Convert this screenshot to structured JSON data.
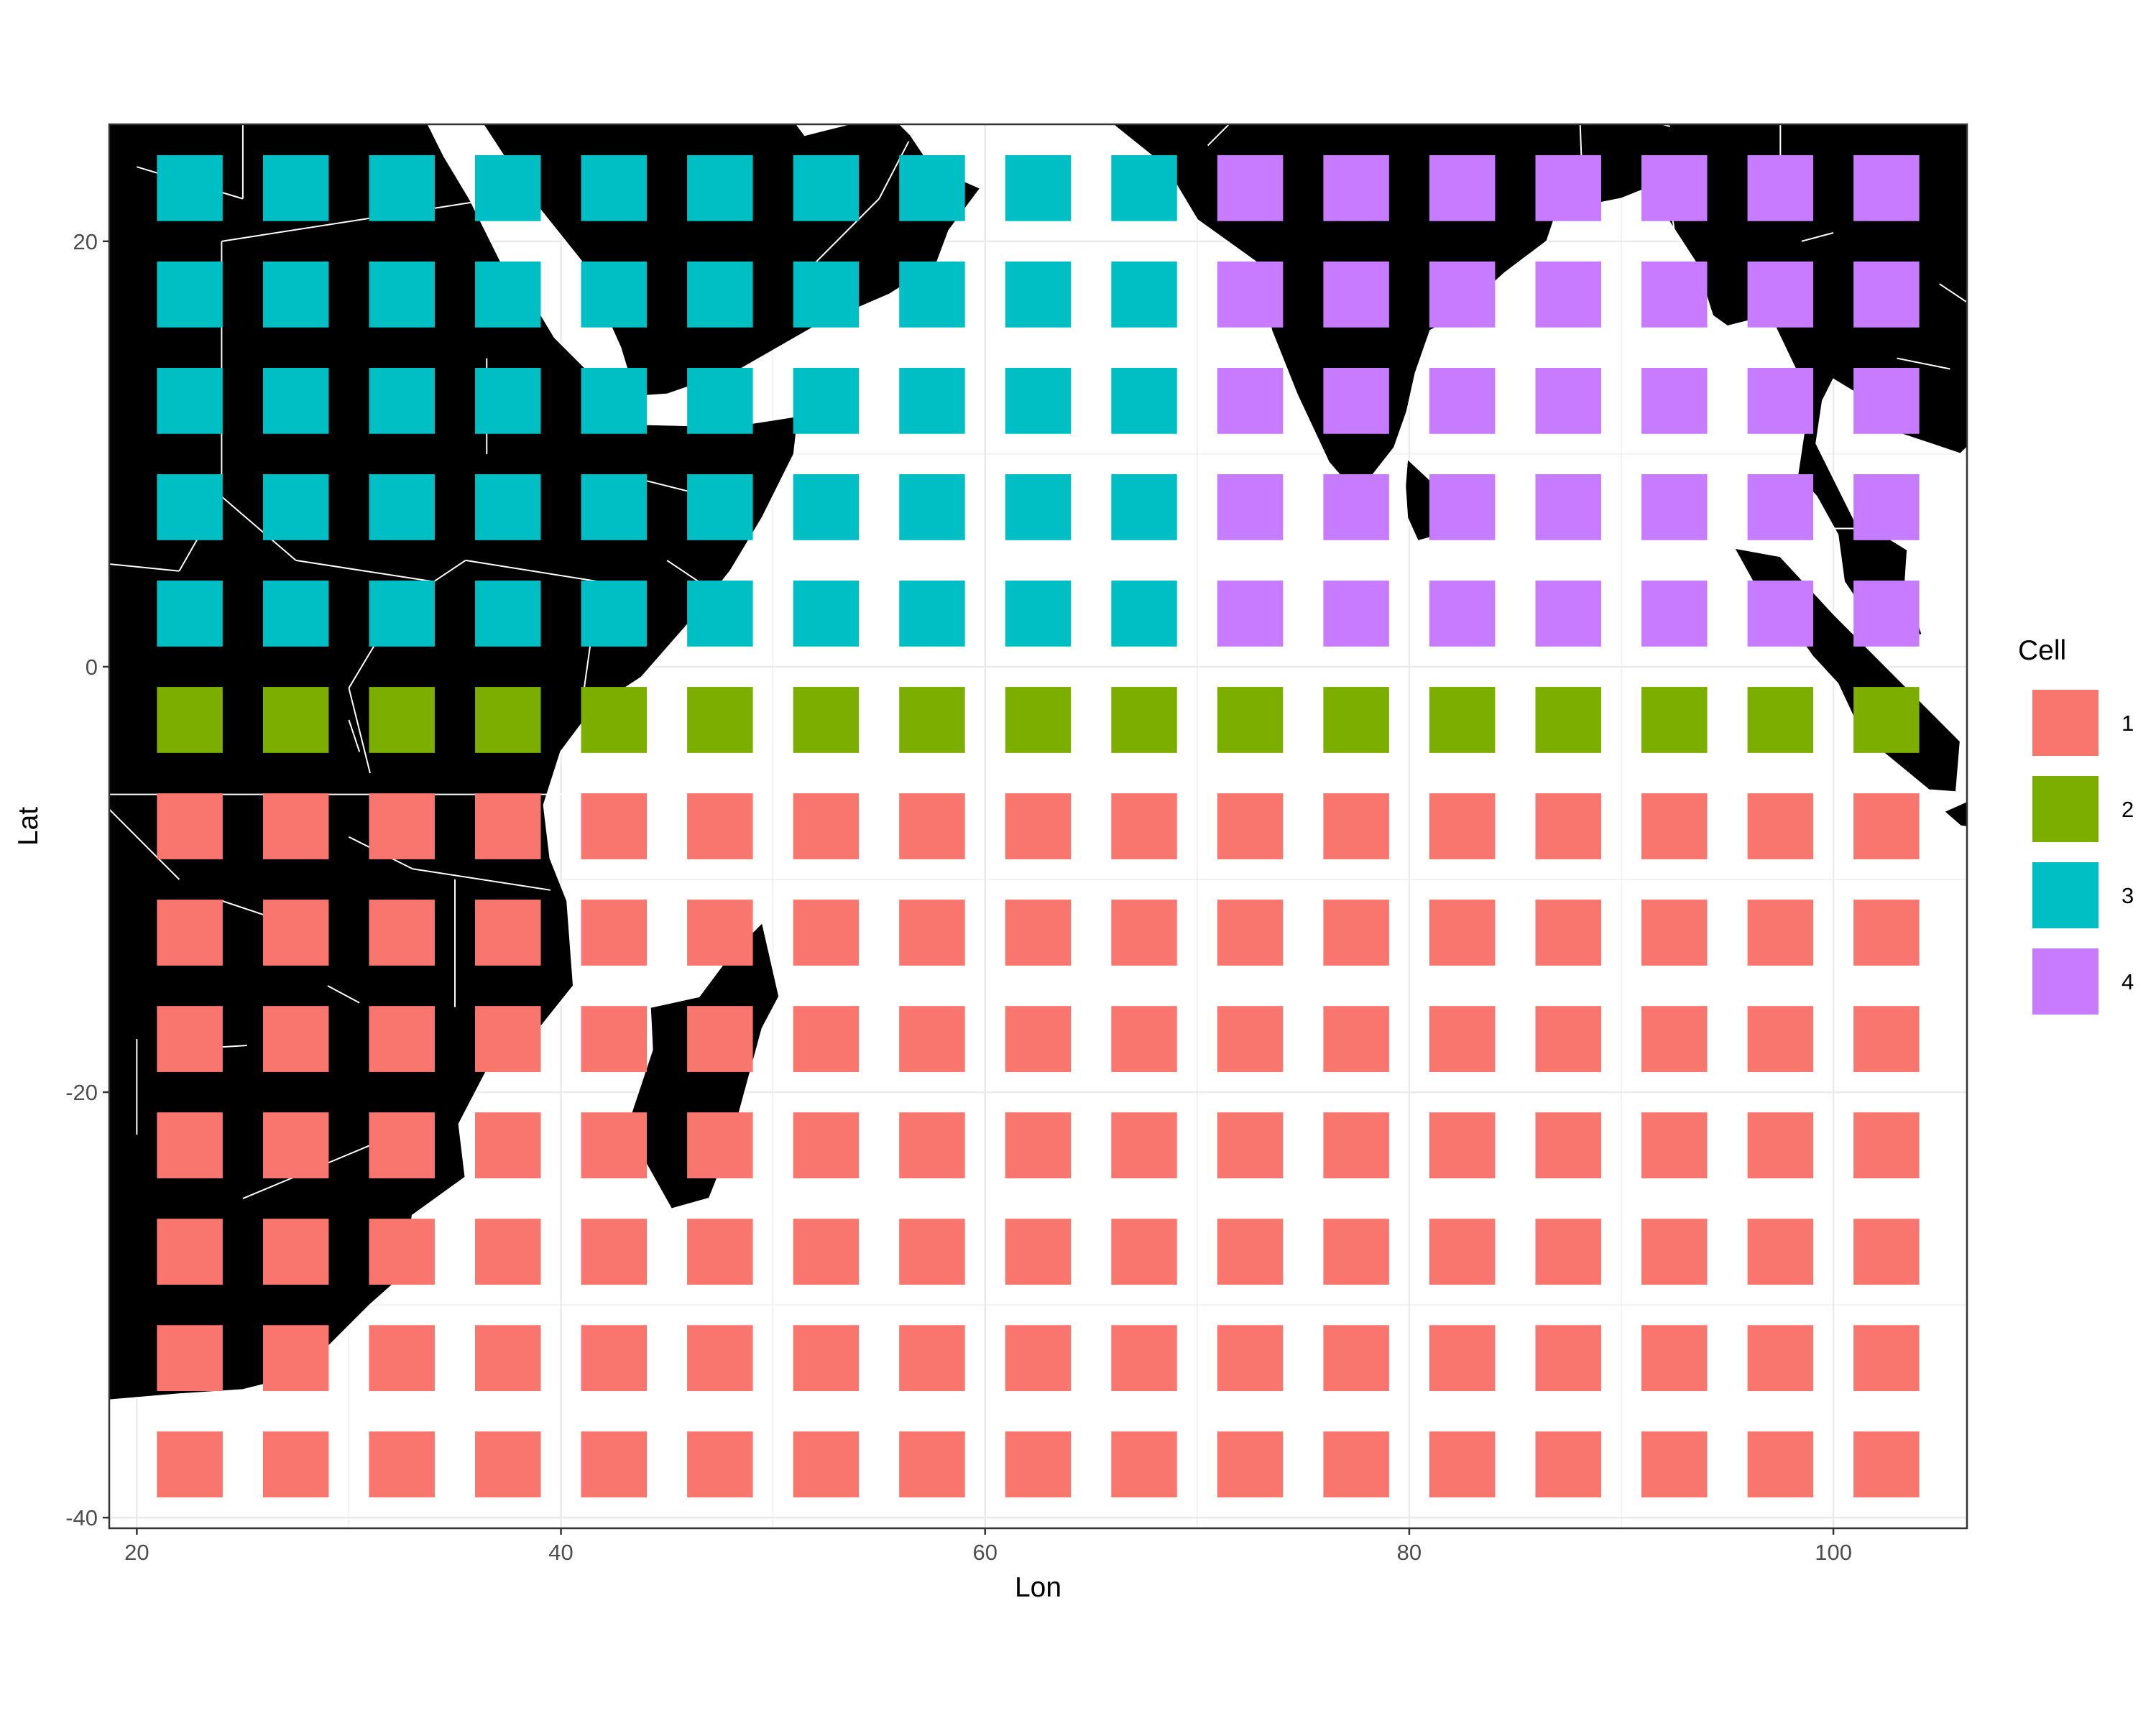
{
  "chart_data": {
    "type": "heatmap",
    "title": "",
    "xlabel": "Lon",
    "ylabel": "Lat",
    "xlim": [
      18.7,
      106.3
    ],
    "ylim": [
      -40.5,
      25.5
    ],
    "x_ticks": [
      20,
      40,
      60,
      80,
      100
    ],
    "y_ticks": [
      -40,
      -20,
      0,
      20
    ],
    "grid": true,
    "basemap": "world country boundaries (black land, white borders)",
    "cell_size": [
      3.1,
      3.1
    ],
    "lon_centers": [
      22.5,
      27.5,
      32.5,
      37.5,
      42.5,
      47.5,
      52.5,
      57.5,
      62.5,
      67.5,
      72.5,
      77.5,
      82.5,
      87.5,
      92.5,
      97.5,
      102.5
    ],
    "lat_centers": [
      22.5,
      17.5,
      12.5,
      7.5,
      2.5,
      -2.5,
      -7.5,
      -12.5,
      -17.5,
      -22.5,
      -27.5,
      -32.5,
      -37.5
    ],
    "cell_rows": [
      [
        3,
        3,
        3,
        3,
        3,
        3,
        3,
        3,
        3,
        3,
        4,
        4,
        4,
        4,
        4,
        4,
        4
      ],
      [
        3,
        3,
        3,
        3,
        3,
        3,
        3,
        3,
        3,
        3,
        4,
        4,
        4,
        4,
        4,
        4,
        4
      ],
      [
        3,
        3,
        3,
        3,
        3,
        3,
        3,
        3,
        3,
        3,
        4,
        4,
        4,
        4,
        4,
        4,
        4
      ],
      [
        3,
        3,
        3,
        3,
        3,
        3,
        3,
        3,
        3,
        3,
        4,
        4,
        4,
        4,
        4,
        4,
        4
      ],
      [
        3,
        3,
        3,
        3,
        3,
        3,
        3,
        3,
        3,
        3,
        4,
        4,
        4,
        4,
        4,
        4,
        4
      ],
      [
        2,
        2,
        2,
        2,
        2,
        2,
        2,
        2,
        2,
        2,
        2,
        2,
        2,
        2,
        2,
        2,
        2
      ],
      [
        1,
        1,
        1,
        1,
        1,
        1,
        1,
        1,
        1,
        1,
        1,
        1,
        1,
        1,
        1,
        1,
        1
      ],
      [
        1,
        1,
        1,
        1,
        1,
        1,
        1,
        1,
        1,
        1,
        1,
        1,
        1,
        1,
        1,
        1,
        1
      ],
      [
        1,
        1,
        1,
        1,
        1,
        1,
        1,
        1,
        1,
        1,
        1,
        1,
        1,
        1,
        1,
        1,
        1
      ],
      [
        1,
        1,
        1,
        1,
        1,
        1,
        1,
        1,
        1,
        1,
        1,
        1,
        1,
        1,
        1,
        1,
        1
      ],
      [
        1,
        1,
        1,
        1,
        1,
        1,
        1,
        1,
        1,
        1,
        1,
        1,
        1,
        1,
        1,
        1,
        1
      ],
      [
        1,
        1,
        1,
        1,
        1,
        1,
        1,
        1,
        1,
        1,
        1,
        1,
        1,
        1,
        1,
        1,
        1
      ],
      [
        1,
        1,
        1,
        1,
        1,
        1,
        1,
        1,
        1,
        1,
        1,
        1,
        1,
        1,
        1,
        1,
        1
      ]
    ],
    "legend": {
      "title": "Cell",
      "position": "right",
      "entries": [
        {
          "label": "1",
          "color": "#F8766D"
        },
        {
          "label": "2",
          "color": "#7CAE00"
        },
        {
          "label": "3",
          "color": "#00BFC4"
        },
        {
          "label": "4",
          "color": "#C77CFF"
        }
      ]
    }
  }
}
